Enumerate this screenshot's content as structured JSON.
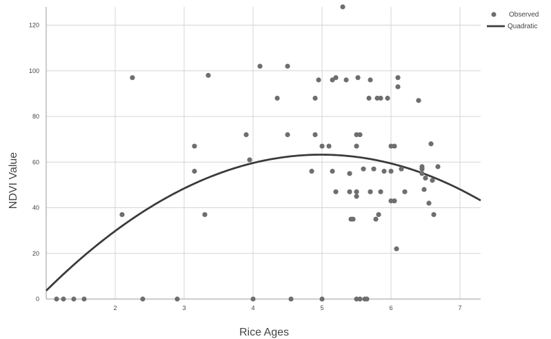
{
  "chart_data": {
    "type": "scatter",
    "xlabel": "Rice Ages",
    "ylabel": "NDVI Value",
    "xlim": [
      1.0,
      7.3
    ],
    "ylim": [
      0,
      128
    ],
    "x_ticks": [
      1,
      2,
      3,
      4,
      5,
      6,
      7
    ],
    "x_tick_labels": [
      "",
      "2",
      "3",
      "4",
      "5",
      "6",
      "7"
    ],
    "y_ticks": [
      0,
      20,
      40,
      60,
      80,
      100,
      120
    ],
    "y_tick_labels": [
      "0",
      "20",
      "40",
      "60",
      "80",
      "100",
      "120"
    ],
    "grid": true,
    "legend_position": "top-right",
    "series": [
      {
        "name": "Observed",
        "kind": "points",
        "color": "#6e6e6e",
        "points": [
          [
            1.15,
            0
          ],
          [
            1.25,
            0
          ],
          [
            1.4,
            0
          ],
          [
            1.55,
            0
          ],
          [
            2.1,
            37
          ],
          [
            2.25,
            97
          ],
          [
            2.4,
            0
          ],
          [
            2.9,
            0
          ],
          [
            3.15,
            67
          ],
          [
            3.15,
            56
          ],
          [
            3.3,
            37
          ],
          [
            3.35,
            98
          ],
          [
            3.9,
            72
          ],
          [
            3.95,
            61
          ],
          [
            4.0,
            0
          ],
          [
            4.1,
            102
          ],
          [
            4.35,
            88
          ],
          [
            4.5,
            102
          ],
          [
            4.5,
            72
          ],
          [
            4.55,
            0
          ],
          [
            4.85,
            56
          ],
          [
            4.9,
            88
          ],
          [
            4.9,
            72
          ],
          [
            4.95,
            96
          ],
          [
            5.0,
            67
          ],
          [
            5.0,
            0
          ],
          [
            5.1,
            67
          ],
          [
            5.15,
            96
          ],
          [
            5.15,
            56
          ],
          [
            5.2,
            97
          ],
          [
            5.2,
            47
          ],
          [
            5.3,
            128
          ],
          [
            5.35,
            96
          ],
          [
            5.4,
            55
          ],
          [
            5.4,
            47
          ],
          [
            5.42,
            35
          ],
          [
            5.45,
            35
          ],
          [
            5.5,
            72
          ],
          [
            5.5,
            67
          ],
          [
            5.5,
            47
          ],
          [
            5.5,
            45
          ],
          [
            5.5,
            0
          ],
          [
            5.52,
            97
          ],
          [
            5.55,
            72
          ],
          [
            5.55,
            0
          ],
          [
            5.6,
            57
          ],
          [
            5.62,
            0
          ],
          [
            5.65,
            0
          ],
          [
            5.68,
            88
          ],
          [
            5.7,
            96
          ],
          [
            5.7,
            47
          ],
          [
            5.75,
            57
          ],
          [
            5.78,
            35
          ],
          [
            5.8,
            88
          ],
          [
            5.82,
            37
          ],
          [
            5.85,
            88
          ],
          [
            5.85,
            47
          ],
          [
            5.9,
            56
          ],
          [
            5.95,
            88
          ],
          [
            6.0,
            67
          ],
          [
            6.0,
            56
          ],
          [
            6.0,
            43
          ],
          [
            6.05,
            67
          ],
          [
            6.05,
            43
          ],
          [
            6.08,
            22
          ],
          [
            6.1,
            97
          ],
          [
            6.1,
            93
          ],
          [
            6.15,
            57
          ],
          [
            6.2,
            47
          ],
          [
            6.4,
            87
          ],
          [
            6.45,
            58
          ],
          [
            6.45,
            57
          ],
          [
            6.45,
            55
          ],
          [
            6.48,
            48
          ],
          [
            6.5,
            53
          ],
          [
            6.55,
            42
          ],
          [
            6.58,
            68
          ],
          [
            6.6,
            52
          ],
          [
            6.62,
            37
          ],
          [
            6.68,
            58
          ]
        ]
      },
      {
        "name": "Quadratic",
        "kind": "curve",
        "color": "#3b3b3b",
        "coefficients": [
          -30,
          37.4,
          -3.75
        ]
      }
    ]
  }
}
